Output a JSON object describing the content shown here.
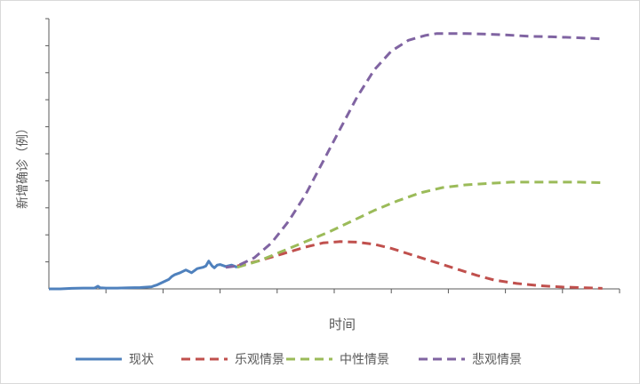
{
  "chart_data": {
    "type": "line",
    "xlabel": "时间",
    "ylabel": "新增确诊（例）",
    "xlim": [
      0,
      100
    ],
    "ylim": [
      0,
      100
    ],
    "y_ticks": 10,
    "x_ticks": 10,
    "tick_labels_shown": false,
    "grid": false,
    "legend_position": "bottom",
    "series": [
      {
        "name": "现状",
        "style": "solid",
        "color": "#4f81bd",
        "x": [
          0,
          2,
          4,
          6,
          8,
          8.6,
          9,
          10,
          12,
          14,
          16,
          18,
          18.5,
          19,
          20,
          21,
          21.5,
          22,
          23,
          24,
          25,
          26,
          27,
          27.5,
          28,
          28.6,
          29,
          29.5,
          30,
          31,
          32,
          33
        ],
        "y": [
          0,
          0,
          0.2,
          0.3,
          0.3,
          1.0,
          0.4,
          0.3,
          0.3,
          0.4,
          0.5,
          0.8,
          1.2,
          1.5,
          2.5,
          3.5,
          4.5,
          5.2,
          6.0,
          7.0,
          6.0,
          7.5,
          8.0,
          8.5,
          10.3,
          8.5,
          7.8,
          8.8,
          9.0,
          8.3,
          8.8,
          8.0
        ]
      },
      {
        "name": "乐观情景",
        "style": "dashed",
        "color": "#c0504d",
        "x": [
          33,
          37,
          41,
          45,
          48,
          51,
          54,
          57,
          60,
          63,
          66,
          69,
          72,
          75,
          78,
          82,
          86,
          90,
          94,
          97
        ],
        "y": [
          8.5,
          10.5,
          13.0,
          15.5,
          17.0,
          17.5,
          17.3,
          16.5,
          15.0,
          13.0,
          11.0,
          9.0,
          7.0,
          5.0,
          3.3,
          2.0,
          1.2,
          0.7,
          0.4,
          0.2
        ]
      },
      {
        "name": "中性情景",
        "style": "dashed",
        "color": "#9bbb59",
        "x": [
          33,
          37,
          41,
          45,
          49,
          53,
          57,
          61,
          65,
          69,
          73,
          77,
          81,
          85,
          89,
          93,
          97
        ],
        "y": [
          8.0,
          10.5,
          14.0,
          17.5,
          21.0,
          25.0,
          29.0,
          32.5,
          35.5,
          37.5,
          38.5,
          39.0,
          39.5,
          39.5,
          39.5,
          39.5,
          39.3
        ]
      },
      {
        "name": "悲观情景",
        "style": "dashed",
        "color": "#8064a2",
        "x": [
          31,
          33,
          36,
          39,
          42,
          45,
          48,
          51,
          54,
          57,
          60,
          63,
          66,
          68,
          70,
          73,
          76,
          80,
          84,
          88,
          92,
          97
        ],
        "y": [
          8.0,
          8.5,
          11.5,
          17.0,
          25.0,
          35.0,
          47.0,
          59.0,
          71.0,
          81.0,
          88.0,
          92.0,
          93.8,
          94.5,
          94.5,
          94.5,
          94.3,
          94.0,
          93.5,
          93.3,
          93.0,
          92.5
        ]
      }
    ]
  }
}
